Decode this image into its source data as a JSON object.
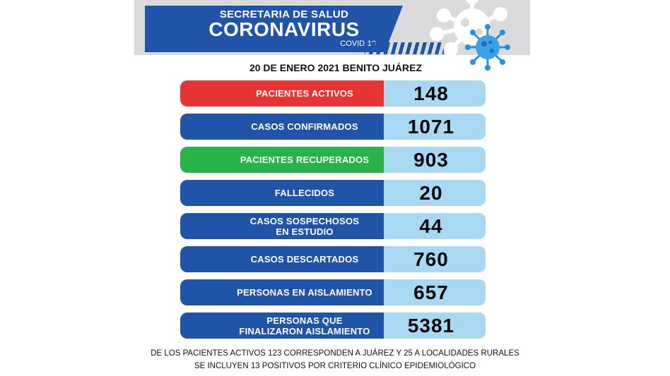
{
  "header": {
    "organization": "SECRETARIA DE SALUD",
    "title": "CORONAVIRUS",
    "subtitle": "COVID-19",
    "date_location": "20 DE ENERO 2021 BENITO JUÁREZ"
  },
  "stats": [
    {
      "label": "PACIENTES ACTIVOS",
      "value": "148",
      "color": "#e63333"
    },
    {
      "label": "CASOS CONFIRMADOS",
      "value": "1071",
      "color": "#1f54a8"
    },
    {
      "label": "PACIENTES RECUPERADOS",
      "value": "903",
      "color": "#27b24a"
    },
    {
      "label": "FALLECIDOS",
      "value": "20",
      "color": "#1f54a8"
    },
    {
      "label": "CASOS SOSPECHOSOS\nEN ESTUDIO",
      "value": "44",
      "color": "#1f54a8"
    },
    {
      "label": "CASOS DESCARTADOS",
      "value": "760",
      "color": "#1f54a8"
    },
    {
      "label": "PERSONAS EN AISLAMIENTO",
      "value": "657",
      "color": "#1f54a8"
    },
    {
      "label": "PERSONAS QUE\nFINALIZARON AISLAMIENTO",
      "value": "5381",
      "color": "#1f54a8"
    }
  ],
  "footnotes": [
    "DE LOS PACIENTES ACTIVOS 123 CORRESPONDEN A JUÁREZ Y 25 A LOCALIDADES RURALES",
    "SE INCLUYEN 13 POSITIVOS  POR  CRITERIO CLÍNICO EPIDEMIOLÓGICO"
  ],
  "icons": {
    "virus_background": "virus-icon",
    "virus_main": "virus-icon"
  }
}
